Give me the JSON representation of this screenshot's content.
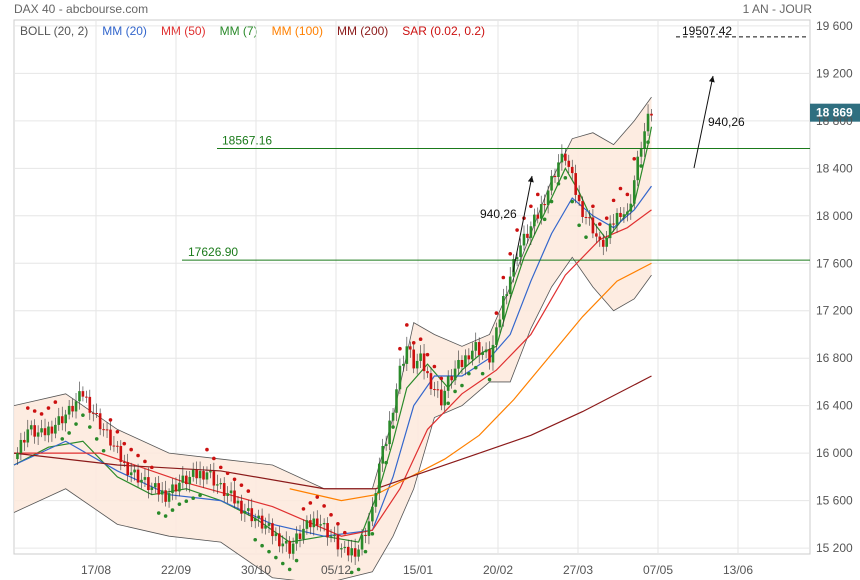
{
  "header": {
    "title": "DAX 40 - abcbourse.com",
    "period": "1 AN - JOUR"
  },
  "legend": [
    {
      "label": "BOLL (20, 2)",
      "color": "#555555"
    },
    {
      "label": "MM (20)",
      "color": "#3366cc"
    },
    {
      "label": "MM (50)",
      "color": "#e03030"
    },
    {
      "label": "MM (7)",
      "color": "#2a8a2a"
    },
    {
      "label": "MM (100)",
      "color": "#ff8000"
    },
    {
      "label": "MM (200)",
      "color": "#8b1a1a"
    },
    {
      "label": "SAR (0.02, 0.2)",
      "color": "#cc1111"
    }
  ],
  "chart_data": {
    "type": "line",
    "title": "DAX 40 - abcbourse.com",
    "subtitle": "1 AN - JOUR",
    "ylim": [
      15150,
      19650
    ],
    "y_ticks": [
      15200,
      15600,
      16000,
      16400,
      16800,
      17200,
      17600,
      18000,
      18400,
      18800,
      19200,
      19600
    ],
    "y_tick_labels": [
      "15 200",
      "15 600",
      "16 000",
      "16 400",
      "16 800",
      "17 200",
      "17 600",
      "18 000",
      "18 400",
      "18 800",
      "19 200",
      "19 600"
    ],
    "x_tick_labels": [
      "17/08",
      "22/09",
      "30/10",
      "05/12",
      "15/01",
      "20/02",
      "27/03",
      "07/05",
      "13/06"
    ],
    "grid": true,
    "last_price": 18869,
    "last_price_label": "18 869",
    "price_series": [
      [
        0,
        15950
      ],
      [
        4,
        16200
      ],
      [
        8,
        16150
      ],
      [
        12,
        16250
      ],
      [
        16,
        16350
      ],
      [
        20,
        16500
      ],
      [
        24,
        16300
      ],
      [
        28,
        16100
      ],
      [
        32,
        15900
      ],
      [
        36,
        15800
      ],
      [
        40,
        15700
      ],
      [
        44,
        15650
      ],
      [
        48,
        15750
      ],
      [
        52,
        15800
      ],
      [
        56,
        15850
      ],
      [
        60,
        15700
      ],
      [
        64,
        15600
      ],
      [
        68,
        15500
      ],
      [
        72,
        15400
      ],
      [
        76,
        15300
      ],
      [
        80,
        15200
      ],
      [
        84,
        15350
      ],
      [
        88,
        15450
      ],
      [
        92,
        15300
      ],
      [
        96,
        15150
      ],
      [
        100,
        15200
      ],
      [
        104,
        15500
      ],
      [
        106,
        15900
      ],
      [
        108,
        16100
      ],
      [
        110,
        16400
      ],
      [
        112,
        16700
      ],
      [
        114,
        16900
      ],
      [
        116,
        16750
      ],
      [
        118,
        16780
      ],
      [
        120,
        16650
      ],
      [
        122,
        16550
      ],
      [
        124,
        16450
      ],
      [
        126,
        16600
      ],
      [
        128,
        16700
      ],
      [
        130,
        16750
      ],
      [
        132,
        16850
      ],
      [
        134,
        16900
      ],
      [
        136,
        16850
      ],
      [
        138,
        16800
      ],
      [
        140,
        17000
      ],
      [
        142,
        17300
      ],
      [
        144,
        17500
      ],
      [
        146,
        17700
      ],
      [
        148,
        17800
      ],
      [
        150,
        17900
      ],
      [
        152,
        18000
      ],
      [
        154,
        18150
      ],
      [
        156,
        18300
      ],
      [
        158,
        18450
      ],
      [
        160,
        18500
      ],
      [
        162,
        18300
      ],
      [
        164,
        18100
      ],
      [
        166,
        18000
      ],
      [
        168,
        17900
      ],
      [
        170,
        17750
      ],
      [
        172,
        17800
      ],
      [
        174,
        17950
      ],
      [
        176,
        18050
      ],
      [
        178,
        18000
      ],
      [
        180,
        18300
      ],
      [
        182,
        18600
      ],
      [
        184,
        18800
      ],
      [
        185,
        18869
      ]
    ],
    "series": [
      {
        "name": "MM (7)",
        "values": [
          [
            0,
            15900
          ],
          [
            10,
            16050
          ],
          [
            20,
            16100
          ],
          [
            30,
            15800
          ],
          [
            40,
            15650
          ],
          [
            50,
            15700
          ],
          [
            60,
            15600
          ],
          [
            70,
            15450
          ],
          [
            80,
            15250
          ],
          [
            90,
            15300
          ],
          [
            100,
            15250
          ],
          [
            106,
            15700
          ],
          [
            110,
            16100
          ],
          [
            114,
            16550
          ],
          [
            120,
            16750
          ],
          [
            126,
            16550
          ],
          [
            130,
            16700
          ],
          [
            136,
            16850
          ],
          [
            140,
            16900
          ],
          [
            144,
            17300
          ],
          [
            148,
            17650
          ],
          [
            152,
            17900
          ],
          [
            156,
            18150
          ],
          [
            160,
            18400
          ],
          [
            164,
            18200
          ],
          [
            168,
            17950
          ],
          [
            172,
            17800
          ],
          [
            176,
            17950
          ],
          [
            180,
            18100
          ],
          [
            184,
            18600
          ],
          [
            185,
            18750
          ]
        ]
      },
      {
        "name": "MM (20)",
        "values": [
          [
            0,
            15900
          ],
          [
            15,
            16100
          ],
          [
            30,
            15850
          ],
          [
            45,
            15650
          ],
          [
            60,
            15600
          ],
          [
            75,
            15400
          ],
          [
            90,
            15300
          ],
          [
            104,
            15350
          ],
          [
            110,
            15800
          ],
          [
            116,
            16400
          ],
          [
            122,
            16650
          ],
          [
            130,
            16650
          ],
          [
            138,
            16800
          ],
          [
            144,
            17000
          ],
          [
            150,
            17450
          ],
          [
            156,
            17850
          ],
          [
            162,
            18150
          ],
          [
            168,
            18000
          ],
          [
            174,
            17900
          ],
          [
            180,
            18050
          ],
          [
            185,
            18250
          ]
        ]
      },
      {
        "name": "MM (50)",
        "values": [
          [
            0,
            16000
          ],
          [
            25,
            16000
          ],
          [
            50,
            15750
          ],
          [
            75,
            15550
          ],
          [
            95,
            15300
          ],
          [
            104,
            15350
          ],
          [
            112,
            15700
          ],
          [
            120,
            16200
          ],
          [
            130,
            16500
          ],
          [
            140,
            16700
          ],
          [
            150,
            17000
          ],
          [
            160,
            17500
          ],
          [
            170,
            17800
          ],
          [
            178,
            17900
          ],
          [
            185,
            18050
          ]
        ]
      },
      {
        "name": "MM (100)",
        "values": [
          [
            0,
            null
          ],
          [
            80,
            15700
          ],
          [
            95,
            15600
          ],
          [
            105,
            15650
          ],
          [
            115,
            15800
          ],
          [
            125,
            15950
          ],
          [
            135,
            16150
          ],
          [
            145,
            16450
          ],
          [
            155,
            16800
          ],
          [
            165,
            17150
          ],
          [
            175,
            17450
          ],
          [
            185,
            17600
          ]
        ]
      },
      {
        "name": "MM (200)",
        "values": [
          [
            0,
            16000
          ],
          [
            30,
            15900
          ],
          [
            60,
            15850
          ],
          [
            90,
            15700
          ],
          [
            105,
            15700
          ],
          [
            120,
            15850
          ],
          [
            135,
            16000
          ],
          [
            150,
            16150
          ],
          [
            165,
            16350
          ],
          [
            185,
            16650
          ]
        ]
      },
      {
        "name": "BOLL (20, 2)",
        "upper": [
          [
            0,
            16400
          ],
          [
            15,
            16500
          ],
          [
            30,
            16200
          ],
          [
            45,
            16000
          ],
          [
            60,
            15950
          ],
          [
            75,
            15900
          ],
          [
            90,
            15700
          ],
          [
            104,
            15700
          ],
          [
            110,
            16300
          ],
          [
            116,
            17100
          ],
          [
            122,
            17000
          ],
          [
            130,
            16900
          ],
          [
            138,
            17000
          ],
          [
            144,
            17400
          ],
          [
            150,
            17850
          ],
          [
            156,
            18300
          ],
          [
            162,
            18650
          ],
          [
            168,
            18700
          ],
          [
            174,
            18600
          ],
          [
            180,
            18800
          ],
          [
            185,
            19000
          ]
        ],
        "lower": [
          [
            0,
            15500
          ],
          [
            15,
            15700
          ],
          [
            30,
            15400
          ],
          [
            45,
            15300
          ],
          [
            60,
            15250
          ],
          [
            75,
            14950
          ],
          [
            90,
            14900
          ],
          [
            104,
            15000
          ],
          [
            110,
            15300
          ],
          [
            116,
            15700
          ],
          [
            122,
            16300
          ],
          [
            130,
            16400
          ],
          [
            138,
            16600
          ],
          [
            144,
            16600
          ],
          [
            150,
            17050
          ],
          [
            156,
            17400
          ],
          [
            162,
            17650
          ],
          [
            168,
            17400
          ],
          [
            174,
            17200
          ],
          [
            180,
            17300
          ],
          [
            185,
            17500
          ]
        ]
      }
    ],
    "annotations": [
      {
        "text": "18567.16",
        "y": 18567.16,
        "type": "horizontal-line"
      },
      {
        "text": "17626.90",
        "y": 17626.9,
        "type": "horizontal-line"
      },
      {
        "text": "19507.42",
        "y": 19507.42,
        "type": "dashed-target"
      },
      {
        "text": "940,26",
        "type": "arrow"
      },
      {
        "text": "940,26",
        "type": "arrow"
      }
    ]
  }
}
